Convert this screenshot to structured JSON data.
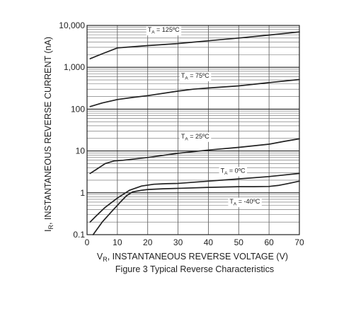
{
  "chart_data": {
    "type": "line",
    "caption": "Figure 3  Typical Reverse Characteristics",
    "xlabel": {
      "symbol": "V",
      "sub": "R",
      "text": ", INSTANTANEOUS REVERSE VOLTAGE (V)"
    },
    "ylabel": {
      "symbol": "I",
      "sub": "R",
      "text": ", INSTANTANEOUS REVERSE CURRENT (nA)"
    },
    "x_scale": "linear",
    "y_scale": "log",
    "xlim": [
      0,
      70
    ],
    "ylim": [
      0.1,
      10000
    ],
    "x_ticks": [
      0,
      10,
      20,
      30,
      40,
      50,
      60,
      70
    ],
    "x_tick_labels": [
      "0",
      "10",
      "20",
      "30",
      "40",
      "50",
      "60",
      "70"
    ],
    "y_ticks": [
      0.1,
      1,
      10,
      100,
      1000,
      10000
    ],
    "y_tick_labels": [
      "0.1",
      "1",
      "10",
      "100",
      "1,000",
      "10,000"
    ],
    "grid": true,
    "series": [
      {
        "name": "T_A = 125ºC",
        "label_main": "T",
        "label_sub": "A",
        "label_rest": " = 125ºC",
        "label_at": [
          20,
          7000
        ],
        "x": [
          1,
          5,
          10,
          15,
          20,
          30,
          40,
          50,
          60,
          70
        ],
        "y": [
          1600,
          2100,
          2900,
          3100,
          3300,
          3700,
          4300,
          5000,
          5900,
          7000
        ]
      },
      {
        "name": "T_A = 75ºC",
        "label_main": "T",
        "label_sub": "A",
        "label_rest": " = 75ºC",
        "label_at": [
          31,
          560
        ],
        "x": [
          1,
          5,
          10,
          15,
          20,
          30,
          35,
          40,
          50,
          60,
          70
        ],
        "y": [
          115,
          140,
          170,
          190,
          210,
          270,
          300,
          320,
          360,
          430,
          510
        ]
      },
      {
        "name": "T_A = 25ºC",
        "label_main": "T",
        "label_sub": "A",
        "label_rest": " = 25ºC",
        "label_at": [
          31,
          20
        ],
        "x": [
          1,
          3,
          6,
          9,
          12,
          20,
          30,
          40,
          50,
          60,
          65,
          70
        ],
        "y": [
          2.9,
          3.6,
          5.0,
          5.8,
          6.0,
          7.0,
          8.8,
          10.5,
          12.2,
          14.5,
          17.0,
          19.5
        ]
      },
      {
        "name": "T_A = 0ºC",
        "label_main": "T",
        "label_sub": "A",
        "label_rest": " = 0ºC",
        "label_at": [
          44,
          3.0
        ],
        "x": [
          1,
          3,
          6,
          10,
          14,
          18,
          22,
          26,
          30,
          40,
          50,
          60,
          70
        ],
        "y": [
          0.2,
          0.28,
          0.45,
          0.75,
          1.15,
          1.45,
          1.6,
          1.65,
          1.68,
          1.9,
          2.15,
          2.45,
          2.9
        ]
      },
      {
        "name": "T_A = -40ºC",
        "label_main": "T",
        "label_sub": "A",
        "label_rest": " = -40ºC",
        "label_at": [
          47,
          0.55
        ],
        "x": [
          2,
          5,
          8,
          11,
          13,
          15,
          18,
          20,
          25,
          30,
          40,
          50,
          55,
          60,
          63,
          66,
          70
        ],
        "y": [
          0.1,
          0.2,
          0.35,
          0.6,
          0.85,
          1.05,
          1.15,
          1.2,
          1.25,
          1.28,
          1.35,
          1.4,
          1.4,
          1.42,
          1.5,
          1.65,
          1.9
        ]
      }
    ]
  }
}
